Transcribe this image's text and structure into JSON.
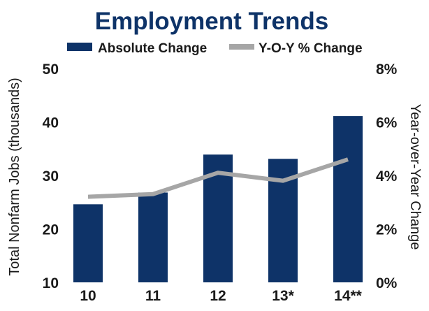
{
  "chart_data": {
    "type": "bar+line",
    "title": "Employment Trends",
    "categories": [
      "10",
      "11",
      "12",
      "13*",
      "14**"
    ],
    "series": [
      {
        "name": "Absolute Change",
        "type": "bar",
        "axis": "left",
        "values": [
          24.6,
          26.8,
          33.9,
          33.1,
          41.1
        ]
      },
      {
        "name": "Y-O-Y % Change",
        "type": "line",
        "axis": "right",
        "values": [
          3.2,
          3.3,
          4.1,
          3.8,
          4.6
        ]
      }
    ],
    "ylabel": "Total Nonfarm Jobs (thousands)",
    "y2label": "Year-over-Year Change",
    "ylim": [
      10,
      50
    ],
    "y2lim": [
      0,
      8
    ],
    "yticks": [
      "10",
      "20",
      "30",
      "40",
      "50"
    ],
    "y2ticks": [
      "0%",
      "2%",
      "4%",
      "6%",
      "8%"
    ],
    "grid": false,
    "legend": "top-center",
    "colors": {
      "title": "#0e3368",
      "bar": "#0e3368",
      "line": "#a6a6a6"
    }
  }
}
